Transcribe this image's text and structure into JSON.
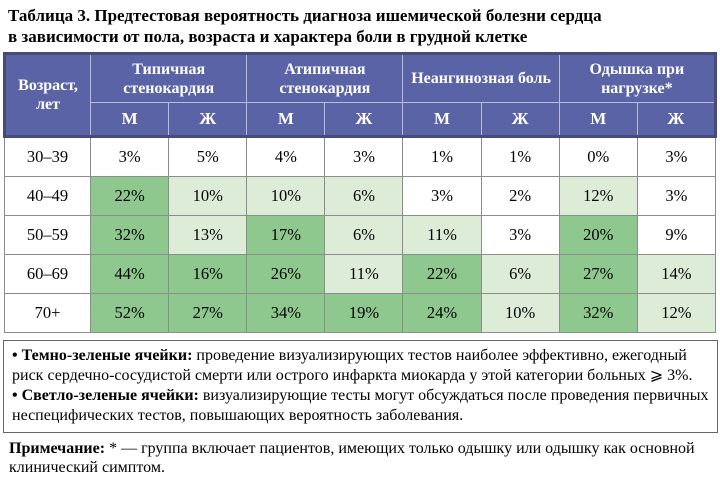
{
  "title": {
    "line1": "Таблица 3. Предтестовая вероятность диагноза ишемической болезни сердца",
    "line2": "в зависимости от пола, возраста и характера боли в грудной клетке"
  },
  "table": {
    "age_header": "Возраст, лет",
    "groups": [
      {
        "label": "Типичная стенокардия"
      },
      {
        "label": "Атипичная стенокардия"
      },
      {
        "label": "Неангинозная боль"
      },
      {
        "label": "Одышка при нагрузке*"
      }
    ],
    "sex_row": [
      "М",
      "Ж",
      "М",
      "Ж",
      "М",
      "Ж",
      "М",
      "Ж"
    ],
    "rows": [
      {
        "age": "30–39",
        "cells": [
          {
            "v": "3%",
            "c": "plain"
          },
          {
            "v": "5%",
            "c": "plain"
          },
          {
            "v": "4%",
            "c": "plain"
          },
          {
            "v": "3%",
            "c": "plain"
          },
          {
            "v": "1%",
            "c": "plain"
          },
          {
            "v": "1%",
            "c": "plain"
          },
          {
            "v": "0%",
            "c": "plain"
          },
          {
            "v": "3%",
            "c": "plain"
          }
        ]
      },
      {
        "age": "40–49",
        "cells": [
          {
            "v": "22%",
            "c": "dark"
          },
          {
            "v": "10%",
            "c": "light"
          },
          {
            "v": "10%",
            "c": "light"
          },
          {
            "v": "6%",
            "c": "light"
          },
          {
            "v": "3%",
            "c": "plain"
          },
          {
            "v": "2%",
            "c": "plain"
          },
          {
            "v": "12%",
            "c": "light"
          },
          {
            "v": "3%",
            "c": "plain"
          }
        ]
      },
      {
        "age": "50–59",
        "cells": [
          {
            "v": "32%",
            "c": "dark"
          },
          {
            "v": "13%",
            "c": "light"
          },
          {
            "v": "17%",
            "c": "dark"
          },
          {
            "v": "6%",
            "c": "light"
          },
          {
            "v": "11%",
            "c": "light"
          },
          {
            "v": "3%",
            "c": "plain"
          },
          {
            "v": "20%",
            "c": "dark"
          },
          {
            "v": "9%",
            "c": "plain"
          }
        ]
      },
      {
        "age": "60–69",
        "cells": [
          {
            "v": "44%",
            "c": "dark"
          },
          {
            "v": "16%",
            "c": "dark"
          },
          {
            "v": "26%",
            "c": "dark"
          },
          {
            "v": "11%",
            "c": "light"
          },
          {
            "v": "22%",
            "c": "dark"
          },
          {
            "v": "6%",
            "c": "light"
          },
          {
            "v": "27%",
            "c": "dark"
          },
          {
            "v": "14%",
            "c": "light"
          }
        ]
      },
      {
        "age": "70+",
        "cells": [
          {
            "v": "52%",
            "c": "dark"
          },
          {
            "v": "27%",
            "c": "dark"
          },
          {
            "v": "34%",
            "c": "dark"
          },
          {
            "v": "19%",
            "c": "dark"
          },
          {
            "v": "24%",
            "c": "dark"
          },
          {
            "v": "10%",
            "c": "light"
          },
          {
            "v": "32%",
            "c": "dark"
          },
          {
            "v": "12%",
            "c": "light"
          }
        ]
      }
    ]
  },
  "legend": {
    "bullet": "•",
    "items": [
      {
        "term": "Темно-зеленые ячейки:",
        "text": "проведение визуализирующих тестов наиболее эффективно, ежегодный риск сердечно-сосудистой смерти или острого инфаркта миокарда у этой категории больных ⩾ 3%."
      },
      {
        "term": "Светло-зеленые ячейки:",
        "text": "визуализирующие тесты могут обсуждаться после проведения первичных неспецифических тестов, повышающих вероятность заболевания."
      }
    ]
  },
  "note": {
    "term": "Примечание:",
    "text": "* — группа включает пациентов, имеющих только одышку или одышку как основной клинический симптом."
  },
  "colors": {
    "header_bg": "#5a63a6",
    "header_outline": "#454c7b",
    "dark_green": "#8fc88f",
    "light_green": "#dcecd7",
    "grid": "#8c8c8c"
  }
}
